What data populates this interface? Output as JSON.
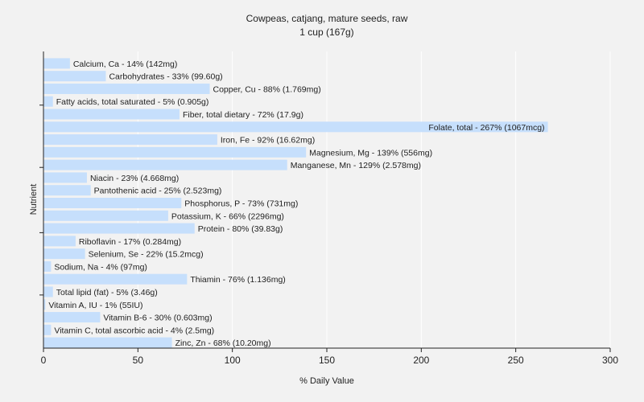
{
  "chart_data": {
    "type": "bar",
    "orientation": "horizontal",
    "title": "Cowpeas, catjang, mature seeds, raw",
    "subtitle": "1 cup (167g)",
    "xlabel": "% Daily Value",
    "ylabel": "Nutrient",
    "xlim": [
      0,
      300
    ],
    "xticks": [
      0,
      50,
      100,
      150,
      200,
      250,
      300
    ],
    "grid": "vertical",
    "colors": {
      "bar": "#c6dffc",
      "background": "#f2f2f2",
      "grid": "#ffffff",
      "axis": "#222222"
    },
    "categories": [
      "Calcium, Ca",
      "Carbohydrates",
      "Copper, Cu",
      "Fatty acids, total saturated",
      "Fiber, total dietary",
      "Folate, total",
      "Iron, Fe",
      "Magnesium, Mg",
      "Manganese, Mn",
      "Niacin",
      "Pantothenic acid",
      "Phosphorus, P",
      "Potassium, K",
      "Protein",
      "Riboflavin",
      "Selenium, Se",
      "Sodium, Na",
      "Thiamin",
      "Total lipid (fat)",
      "Vitamin A, IU",
      "Vitamin B-6",
      "Vitamin C, total ascorbic acid",
      "Zinc, Zn"
    ],
    "values": [
      14,
      33,
      88,
      5,
      72,
      267,
      92,
      139,
      129,
      23,
      25,
      73,
      66,
      80,
      17,
      22,
      4,
      76,
      5,
      1,
      30,
      4,
      68
    ],
    "labels": [
      "Calcium, Ca - 14% (142mg)",
      "Carbohydrates - 33% (99.60g)",
      "Copper, Cu - 88% (1.769mg)",
      "Fatty acids, total saturated - 5% (0.905g)",
      "Fiber, total dietary - 72% (17.9g)",
      "Folate, total - 267% (1067mcg)",
      "Iron, Fe - 92% (16.62mg)",
      "Magnesium, Mg - 139% (556mg)",
      "Manganese, Mn - 129% (2.578mg)",
      "Niacin - 23% (4.668mg)",
      "Pantothenic acid - 25% (2.523mg)",
      "Phosphorus, P - 73% (731mg)",
      "Potassium, K - 66% (2296mg)",
      "Protein - 80% (39.83g)",
      "Riboflavin - 17% (0.284mg)",
      "Selenium, Se - 22% (15.2mcg)",
      "Sodium, Na - 4% (97mg)",
      "Thiamin - 76% (1.136mg)",
      "Total lipid (fat) - 5% (3.46g)",
      "Vitamin A, IU - 1% (55IU)",
      "Vitamin B-6 - 30% (0.603mg)",
      "Vitamin C, total ascorbic acid - 4% (2.5mg)",
      "Zinc, Zn - 68% (10.20mg)"
    ]
  }
}
